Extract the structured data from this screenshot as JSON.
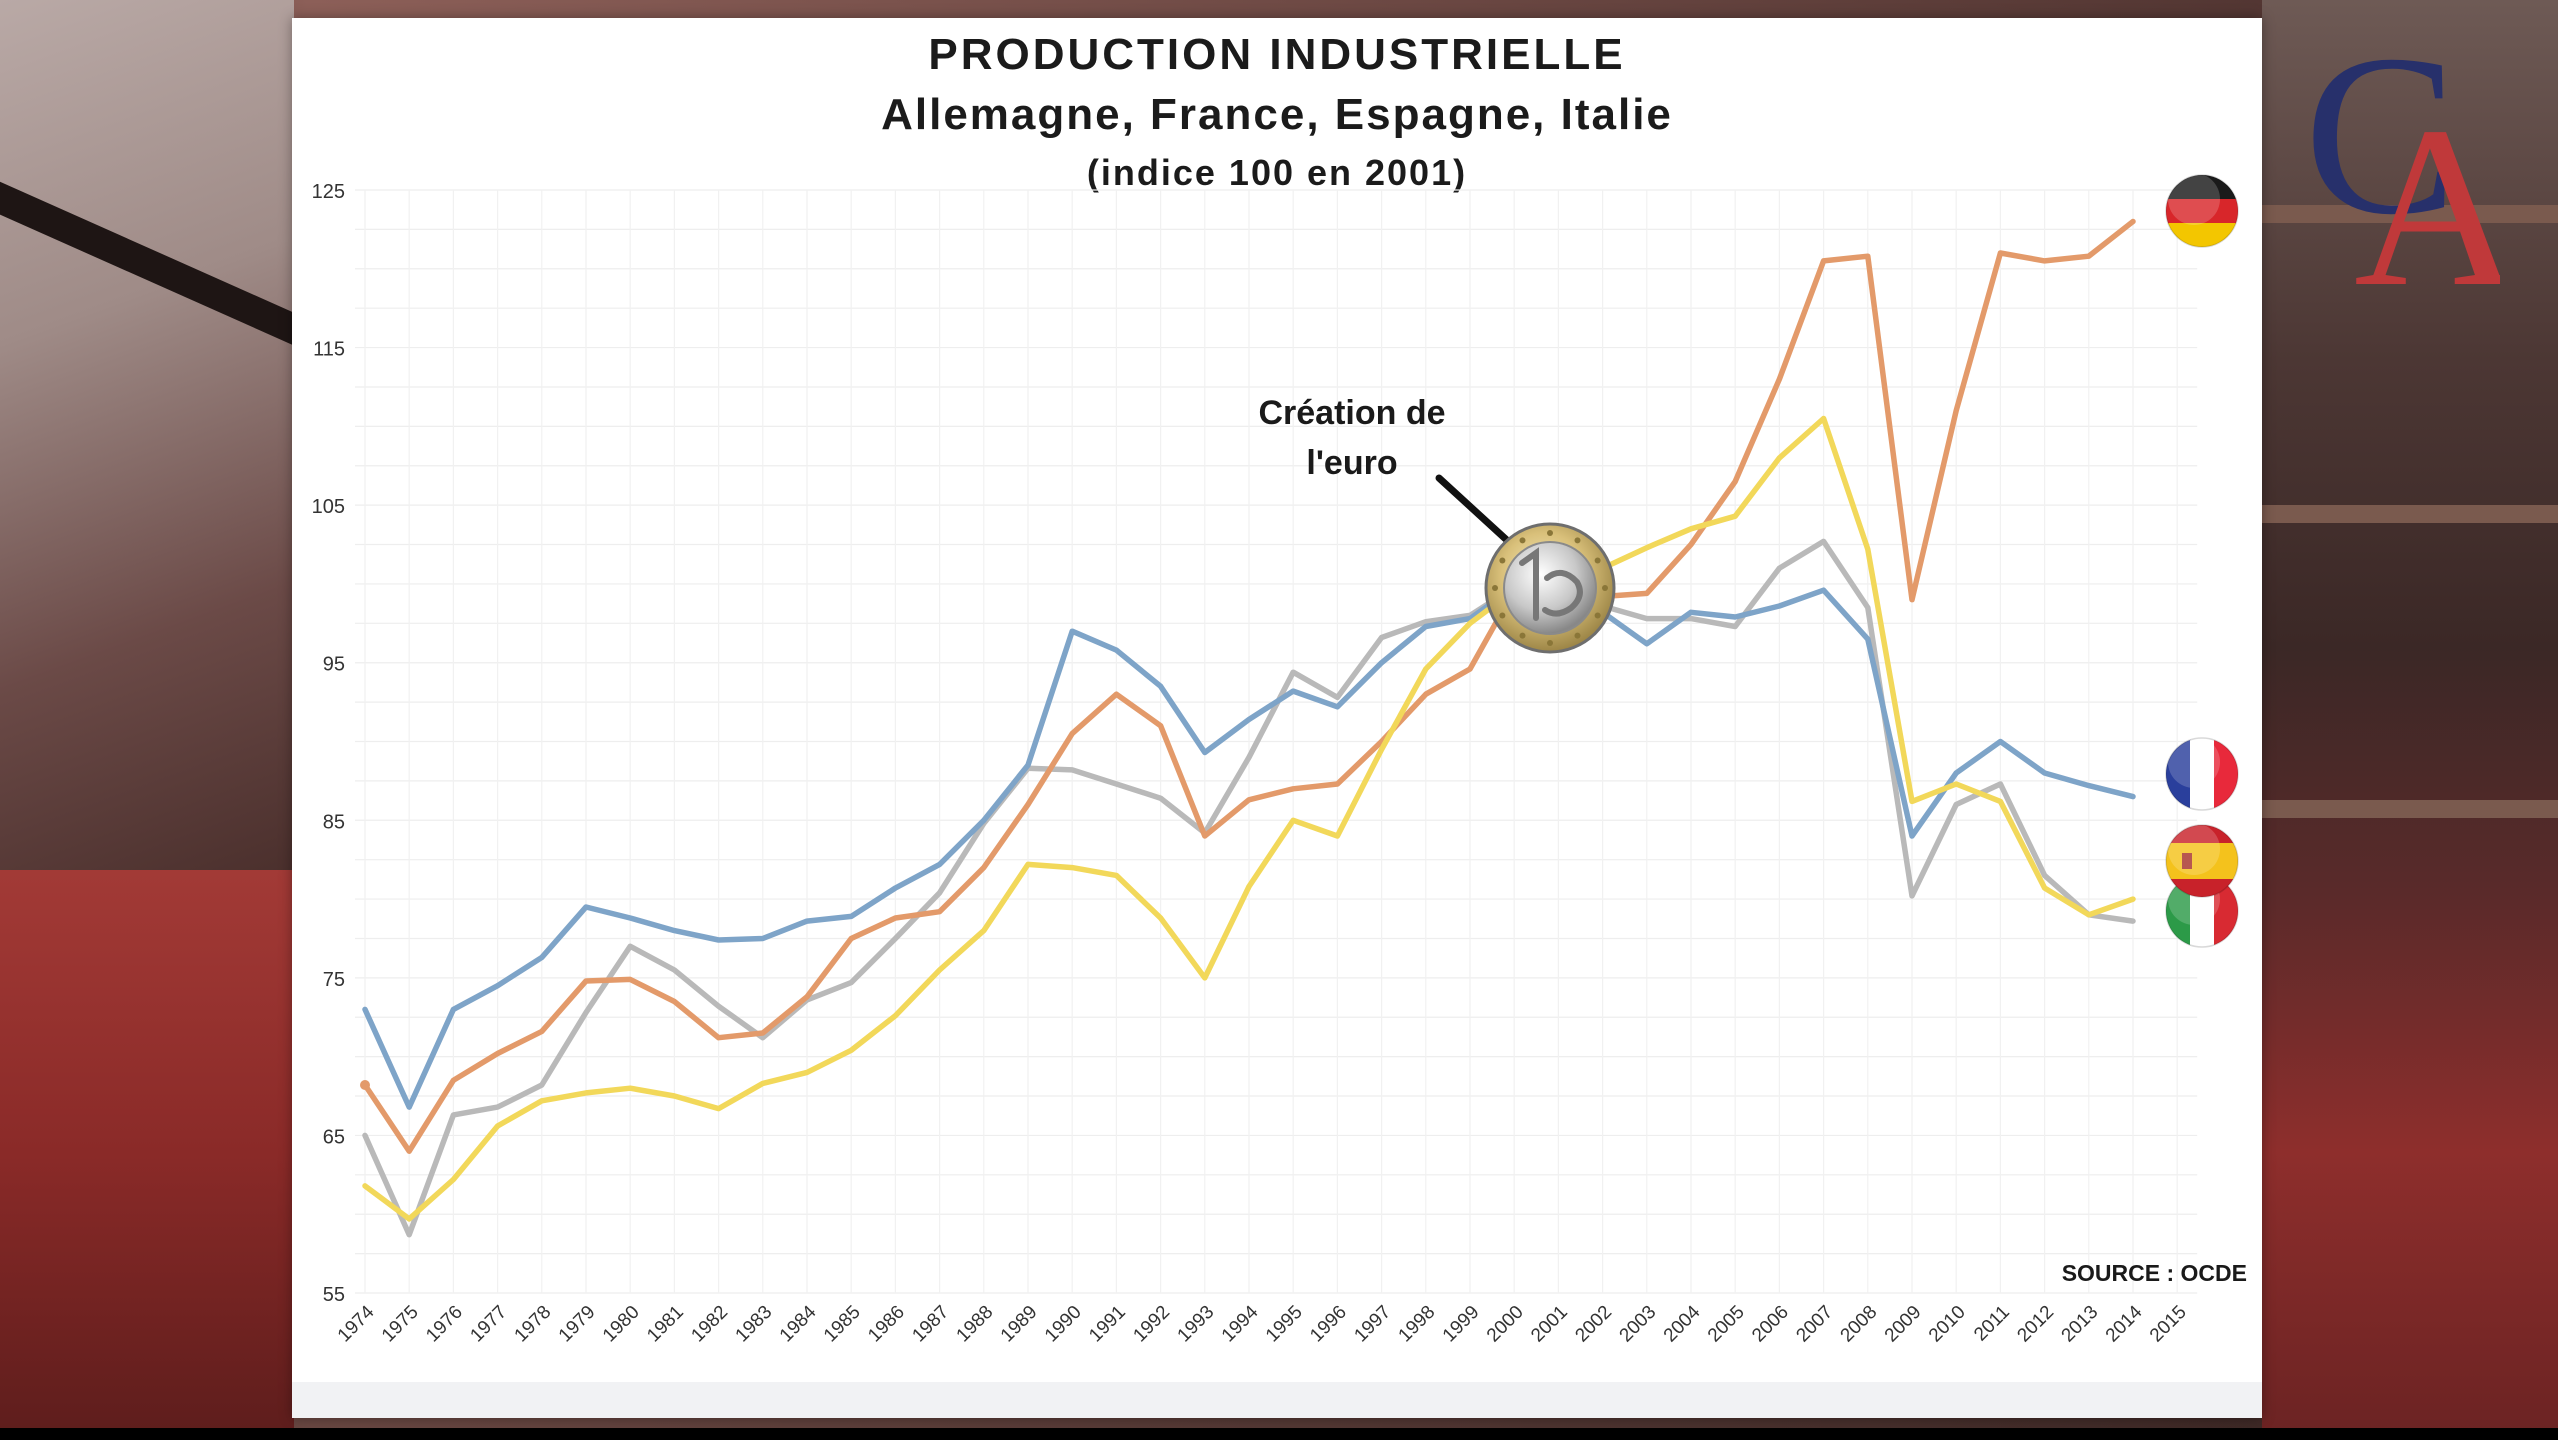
{
  "chart_data": {
    "type": "line",
    "title": "PRODUCTION INDUSTRIELLE",
    "subtitle": "Allemagne, France, Espagne, Italie",
    "subtitle2": "(indice 100 en 2001)",
    "ylim": [
      55,
      125
    ],
    "yticks": [
      55,
      65,
      75,
      85,
      95,
      105,
      115,
      125
    ],
    "categories": [
      "1974",
      "1975",
      "1976",
      "1977",
      "1978",
      "1979",
      "1980",
      "1981",
      "1982",
      "1983",
      "1984",
      "1985",
      "1986",
      "1987",
      "1988",
      "1989",
      "1990",
      "1991",
      "1992",
      "1993",
      "1994",
      "1995",
      "1996",
      "1997",
      "1998",
      "1999",
      "2000",
      "2001",
      "2002",
      "2003",
      "2004",
      "2005",
      "2006",
      "2007",
      "2008",
      "2009",
      "2010",
      "2011",
      "2012",
      "2013",
      "2014",
      "2015"
    ],
    "grid": true,
    "series": [
      {
        "flag": "germany",
        "color": "#e39a6a",
        "values": [
          68.2,
          64,
          68.5,
          70.2,
          71.6,
          74.8,
          74.9,
          73.5,
          71.2,
          71.5,
          73.8,
          77.5,
          78.8,
          79.2,
          82,
          86,
          90.5,
          93,
          91,
          84,
          86.3,
          87,
          87.3,
          90,
          93,
          94.6,
          99.6,
          99.5,
          99.2,
          99.4,
          102.5,
          106.5,
          113,
          120.5,
          120.8,
          99,
          111,
          121,
          120.5,
          120.8,
          123,
          null
        ]
      },
      {
        "flag": "france",
        "color": "#7ea4c8",
        "values": [
          73,
          66.8,
          73,
          74.5,
          76.3,
          79.5,
          78.8,
          78,
          77.4,
          77.5,
          78.6,
          78.9,
          80.7,
          82.2,
          85,
          88.5,
          97,
          95.8,
          93.5,
          89.3,
          91.4,
          93.2,
          92.2,
          95,
          97.3,
          97.8,
          99.8,
          100,
          98.2,
          96.2,
          98.2,
          97.9,
          98.6,
          99.6,
          96.5,
          84,
          88,
          90,
          88,
          87.2,
          86.5,
          null
        ]
      },
      {
        "flag": "italy",
        "color": "#b9b9b9",
        "values": [
          65,
          58.7,
          66.3,
          66.8,
          68.2,
          72.8,
          77,
          75.5,
          73.2,
          71.2,
          73.6,
          74.7,
          77.5,
          80.4,
          84.8,
          88.3,
          88.2,
          87.3,
          86.4,
          84.2,
          89,
          94.4,
          92.8,
          96.6,
          97.6,
          98,
          99.8,
          100,
          98.6,
          97.8,
          97.8,
          97.3,
          101,
          102.7,
          98.5,
          80.2,
          86,
          87.3,
          81.5,
          79,
          78.6,
          null
        ]
      },
      {
        "flag": "spain",
        "color": "#f2d85a",
        "values": [
          61.8,
          59.7,
          62.2,
          65.6,
          67.2,
          67.7,
          68,
          67.5,
          66.7,
          68.3,
          69,
          70.4,
          72.6,
          75.5,
          78,
          82.2,
          82,
          81.5,
          78.8,
          75,
          80.8,
          85,
          84,
          89.5,
          94.6,
          97.5,
          99.6,
          100,
          101,
          102.3,
          103.5,
          104.3,
          108,
          110.5,
          102.2,
          86.2,
          87.3,
          86.2,
          80.7,
          79,
          80,
          null
        ]
      }
    ],
    "annotation": "Création de\nl'euro",
    "source": "SOURCE : OCDE"
  },
  "colors": {
    "germany": "#e39a6a",
    "france": "#7ea4c8",
    "italy": "#b9b9b9",
    "spain": "#f2d85a",
    "logo_blue": "#27306b",
    "logo_red": "#c0393a"
  },
  "logo": {
    "letter1": "C",
    "letter2": "A"
  }
}
